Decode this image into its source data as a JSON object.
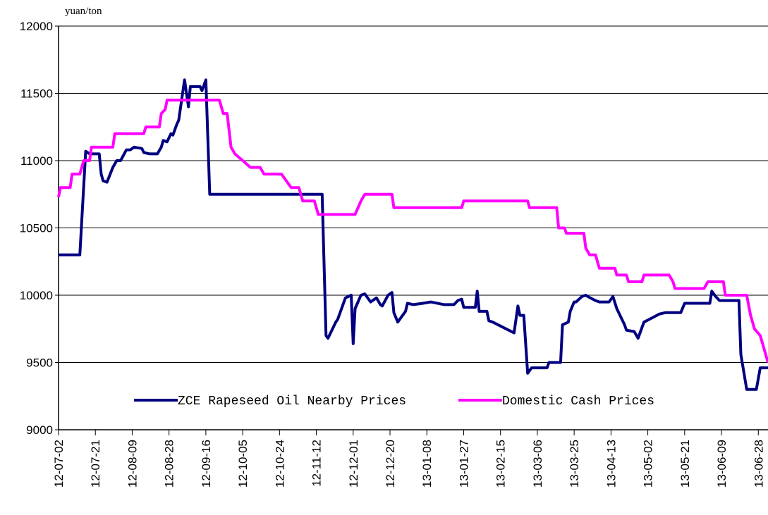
{
  "chart_data": {
    "type": "line",
    "y_label": "yuan/ton",
    "xlim": [
      0,
      366
    ],
    "ylim": [
      9000,
      12000
    ],
    "yticks": [
      9000,
      9500,
      10000,
      10500,
      11000,
      11500,
      12000
    ],
    "xticks": [
      {
        "value": 0,
        "label": "12-07-02"
      },
      {
        "value": 19,
        "label": "12-07-21"
      },
      {
        "value": 38,
        "label": "12-08-09"
      },
      {
        "value": 57,
        "label": "12-08-28"
      },
      {
        "value": 76,
        "label": "12-09-16"
      },
      {
        "value": 95,
        "label": "12-10-05"
      },
      {
        "value": 114,
        "label": "12-10-24"
      },
      {
        "value": 133,
        "label": "12-11-12"
      },
      {
        "value": 152,
        "label": "12-12-01"
      },
      {
        "value": 171,
        "label": "12-12-20"
      },
      {
        "value": 190,
        "label": "13-01-08"
      },
      {
        "value": 209,
        "label": "13-01-27"
      },
      {
        "value": 228,
        "label": "13-02-15"
      },
      {
        "value": 247,
        "label": "13-03-06"
      },
      {
        "value": 266,
        "label": "13-03-25"
      },
      {
        "value": 285,
        "label": "13-04-13"
      },
      {
        "value": 304,
        "label": "13-05-02"
      },
      {
        "value": 323,
        "label": "13-05-21"
      },
      {
        "value": 342,
        "label": "13-06-09"
      },
      {
        "value": 361,
        "label": "13-06-28"
      }
    ],
    "grid": true,
    "series": [
      {
        "name": "ZCE Rapeseed Oil Nearby Prices",
        "color": "#000080",
        "x": [
          0,
          11,
          14,
          16,
          21,
          22,
          23,
          25,
          28,
          30,
          32,
          35,
          37,
          39,
          43,
          44,
          47,
          51,
          53,
          54,
          56,
          58,
          59,
          61,
          62,
          64,
          65,
          67,
          68,
          73,
          74,
          76,
          78,
          136,
          138,
          139,
          143,
          144,
          148,
          151,
          152,
          153,
          156,
          158,
          161,
          164,
          166,
          167,
          170,
          172,
          173,
          175,
          179,
          180,
          183,
          188,
          192,
          199,
          204,
          206,
          208,
          209,
          215,
          216,
          217,
          221,
          222,
          224,
          235,
          237,
          238,
          240,
          242,
          244,
          252,
          253,
          259,
          260,
          263,
          264,
          266,
          267,
          270,
          272,
          273,
          277,
          279,
          284,
          286,
          288,
          292,
          293,
          297,
          299,
          302,
          306,
          310,
          313,
          321,
          323,
          336,
          337,
          339,
          341,
          351,
          352,
          355,
          360,
          362,
          366
        ],
        "values": [
          10300,
          10300,
          11070,
          11050,
          11050,
          10900,
          10850,
          10840,
          10950,
          11000,
          11000,
          11080,
          11080,
          11100,
          11090,
          11060,
          11050,
          11050,
          11100,
          11150,
          11140,
          11200,
          11190,
          11270,
          11300,
          11500,
          11600,
          11400,
          11550,
          11550,
          11520,
          11600,
          10750,
          10750,
          9700,
          9680,
          9800,
          9820,
          9980,
          10000,
          9640,
          9900,
          10000,
          10010,
          9950,
          9980,
          9930,
          9920,
          10000,
          10020,
          9870,
          9800,
          9880,
          9940,
          9930,
          9940,
          9950,
          9930,
          9930,
          9960,
          9970,
          9910,
          9910,
          10030,
          9880,
          9880,
          9810,
          9800,
          9720,
          9920,
          9850,
          9850,
          9420,
          9460,
          9460,
          9500,
          9500,
          9780,
          9800,
          9880,
          9950,
          9950,
          9990,
          10000,
          9990,
          9960,
          9950,
          9950,
          9990,
          9900,
          9780,
          9740,
          9730,
          9680,
          9800,
          9830,
          9860,
          9870,
          9870,
          9940,
          9940,
          10030,
          9990,
          9960,
          9960,
          9560,
          9300,
          9300,
          9460,
          9460
        ]
      },
      {
        "name": "Domestic Cash Prices",
        "color": "#ff00ff",
        "x": [
          0,
          1,
          6,
          7,
          11,
          13,
          16,
          17,
          28,
          29,
          44,
          45,
          52,
          53,
          55,
          56,
          83,
          85,
          87,
          89,
          91,
          95,
          99,
          104,
          106,
          115,
          120,
          124,
          126,
          132,
          134,
          153,
          156,
          158,
          172,
          173,
          208,
          209,
          242,
          243,
          257,
          258,
          261,
          262,
          271,
          272,
          274,
          277,
          279,
          287,
          288,
          293,
          294,
          301,
          302,
          315,
          317,
          318,
          333,
          335,
          343,
          344,
          355,
          357,
          359,
          362,
          364,
          366
        ],
        "values": [
          10730,
          10800,
          10800,
          10900,
          10900,
          11000,
          11000,
          11100,
          11100,
          11200,
          11200,
          11250,
          11250,
          11350,
          11380,
          11450,
          11450,
          11350,
          11350,
          11100,
          11050,
          11000,
          10950,
          10950,
          10900,
          10900,
          10800,
          10800,
          10700,
          10700,
          10600,
          10600,
          10700,
          10750,
          10750,
          10650,
          10650,
          10700,
          10700,
          10650,
          10650,
          10500,
          10500,
          10460,
          10460,
          10350,
          10300,
          10300,
          10200,
          10200,
          10150,
          10150,
          10100,
          10100,
          10150,
          10150,
          10100,
          10050,
          10050,
          10100,
          10100,
          10000,
          10000,
          9850,
          9750,
          9700,
          9600,
          9500
        ]
      }
    ]
  }
}
